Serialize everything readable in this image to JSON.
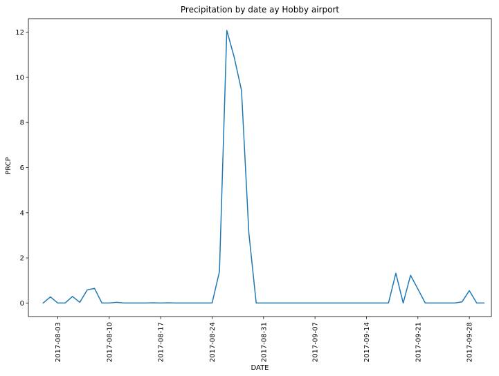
{
  "chart_data": {
    "type": "line",
    "title": "Precipitation by date ay Hobby airport",
    "xlabel": "DATE",
    "ylabel": "PRCP",
    "x_type": "date",
    "xlim": [
      "2017-07-30",
      "2017-10-01"
    ],
    "ylim": [
      -0.6,
      12.6
    ],
    "yticks": [
      0,
      2,
      4,
      6,
      8,
      10,
      12
    ],
    "xticks": [
      "2017-08-03",
      "2017-08-10",
      "2017-08-17",
      "2017-08-24",
      "2017-08-31",
      "2017-09-07",
      "2017-09-14",
      "2017-09-21",
      "2017-09-28"
    ],
    "line_color": "#1f77b4",
    "grid": false,
    "legend": "none",
    "series": [
      {
        "x": [
          "2017-08-01",
          "2017-08-02",
          "2017-08-03",
          "2017-08-04",
          "2017-08-05",
          "2017-08-06",
          "2017-08-07",
          "2017-08-08",
          "2017-08-09",
          "2017-08-10",
          "2017-08-11",
          "2017-08-12",
          "2017-08-13",
          "2017-08-14",
          "2017-08-15",
          "2017-08-16",
          "2017-08-17",
          "2017-08-18",
          "2017-08-19",
          "2017-08-20",
          "2017-08-21",
          "2017-08-22",
          "2017-08-23",
          "2017-08-24",
          "2017-08-25",
          "2017-08-26",
          "2017-08-27",
          "2017-08-28",
          "2017-08-29",
          "2017-08-30",
          "2017-08-31",
          "2017-09-01",
          "2017-09-02",
          "2017-09-03",
          "2017-09-04",
          "2017-09-05",
          "2017-09-06",
          "2017-09-07",
          "2017-09-08",
          "2017-09-09",
          "2017-09-10",
          "2017-09-11",
          "2017-09-12",
          "2017-09-13",
          "2017-09-14",
          "2017-09-15",
          "2017-09-16",
          "2017-09-17",
          "2017-09-18",
          "2017-09-19",
          "2017-09-20",
          "2017-09-21",
          "2017-09-22",
          "2017-09-23",
          "2017-09-24",
          "2017-09-25",
          "2017-09-26",
          "2017-09-27",
          "2017-09-28",
          "2017-09-29",
          "2017-09-30"
        ],
        "values": [
          0,
          0.27,
          0,
          0,
          0.29,
          0.03,
          0.58,
          0.65,
          0,
          0,
          0.03,
          0,
          0,
          0,
          0,
          0.01,
          0,
          0.01,
          0,
          0,
          0,
          0,
          0,
          0,
          1.4,
          12.08,
          10.9,
          9.42,
          3.1,
          0,
          0,
          0,
          0,
          0,
          0,
          0,
          0,
          0,
          0,
          0,
          0,
          0,
          0,
          0,
          0,
          0,
          0,
          0,
          1.32,
          0,
          1.23,
          0.62,
          0,
          0,
          0,
          0,
          0,
          0.05,
          0.55,
          0,
          0
        ]
      }
    ]
  }
}
